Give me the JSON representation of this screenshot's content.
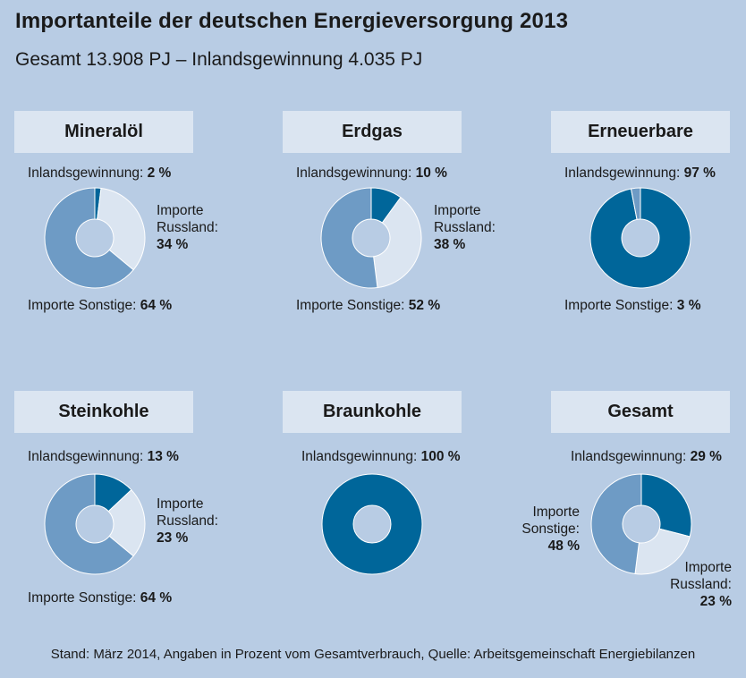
{
  "title": "Importanteile der deutschen Energieversorgung 2013",
  "subtitle": "Gesamt 13.908 PJ – Inlandsgewinnung 4.035 PJ",
  "footer": "Stand: März 2014, Angaben in Prozent vom Gesamtverbrauch, Quelle: Arbeitsgemeinschaft Energiebilanzen",
  "colors": {
    "background": "#b8cce4",
    "header": "#dbe5f1",
    "inland": "#00669a",
    "russland": "#dbe5f1",
    "sonstige": "#6e9bc5"
  },
  "labels": {
    "inland": "Inlandsgewinnung:",
    "importe": "Importe",
    "russland": "Russland:",
    "sonstige": "Sonstige:",
    "importe_russland": "Importe Russland:",
    "importe_sonstige": "Importe Sonstige:"
  },
  "chart_data": [
    {
      "type": "pie",
      "title": "Mineralöl",
      "categories": [
        "Inlandsgewinnung",
        "Importe Russland",
        "Importe Sonstige"
      ],
      "values": [
        2,
        34,
        64
      ],
      "value_labels": [
        "2 %",
        "34 %",
        "64 %"
      ]
    },
    {
      "type": "pie",
      "title": "Erdgas",
      "categories": [
        "Inlandsgewinnung",
        "Importe Russland",
        "Importe Sonstige"
      ],
      "values": [
        10,
        38,
        52
      ],
      "value_labels": [
        "10 %",
        "38 %",
        "52 %"
      ]
    },
    {
      "type": "pie",
      "title": "Erneuerbare",
      "categories": [
        "Inlandsgewinnung",
        "Importe Sonstige"
      ],
      "values": [
        97,
        3
      ],
      "value_labels": [
        "97 %",
        "3 %"
      ]
    },
    {
      "type": "pie",
      "title": "Steinkohle",
      "categories": [
        "Inlandsgewinnung",
        "Importe Russland",
        "Importe Sonstige"
      ],
      "values": [
        13,
        23,
        64
      ],
      "value_labels": [
        "13 %",
        "23 %",
        "64 %"
      ]
    },
    {
      "type": "pie",
      "title": "Braunkohle",
      "categories": [
        "Inlandsgewinnung"
      ],
      "values": [
        100
      ],
      "value_labels": [
        "100 %"
      ]
    },
    {
      "type": "pie",
      "title": "Gesamt",
      "categories": [
        "Inlandsgewinnung",
        "Importe Russland",
        "Importe Sonstige"
      ],
      "values": [
        29,
        23,
        48
      ],
      "value_labels": [
        "29 %",
        "23 %",
        "48 %"
      ]
    }
  ]
}
